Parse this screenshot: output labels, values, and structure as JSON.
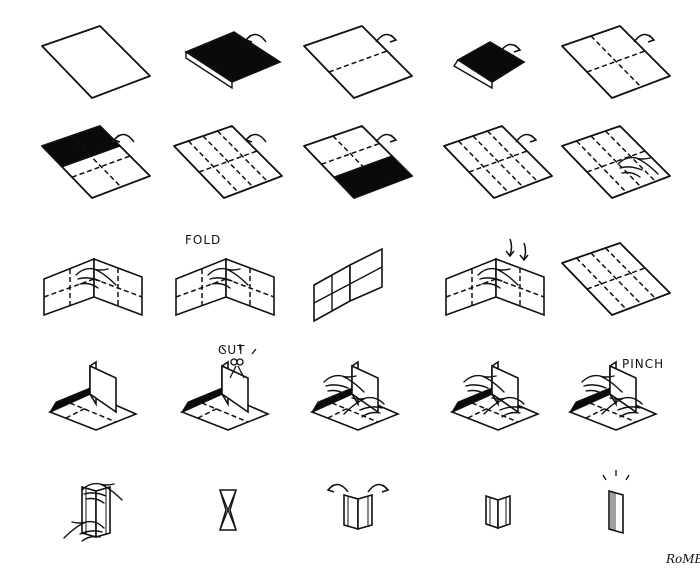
{
  "labels": {
    "fold": "FOLD",
    "cut": "CUT",
    "pinch": "PINCH"
  },
  "signature": "RoMB",
  "colors": {
    "ink": "#111111",
    "paper": "#ffffff",
    "fill": "#0a0a0a"
  },
  "steps": [
    {
      "type": "blank"
    },
    {
      "type": "hot-dog-folded",
      "arrow": "ccw"
    },
    {
      "type": "center-vertical-crease",
      "arrow": "cw"
    },
    {
      "type": "hamburger-folded",
      "arrow": "cw"
    },
    {
      "type": "quarter-creases",
      "arrow": "cw"
    },
    {
      "type": "top-flap-folded",
      "arrow": "ccw"
    },
    {
      "type": "eighth-creases",
      "arrow": "ccw"
    },
    {
      "type": "bottom-flap-folded",
      "arrow": "cw"
    },
    {
      "type": "eighth-creases",
      "arrow": "cw"
    },
    {
      "type": "eighth-creases-hand"
    },
    {
      "type": "fold-with-hands"
    },
    {
      "type": "fold-with-hands",
      "label": "fold"
    },
    {
      "type": "folded-tent"
    },
    {
      "type": "fold-with-hands",
      "arrow": "down"
    },
    {
      "type": "eighth-creases"
    },
    {
      "type": "tent-arrows"
    },
    {
      "type": "tent-cut",
      "label": "cut"
    },
    {
      "type": "tent-hands"
    },
    {
      "type": "tent-hands"
    },
    {
      "type": "tent-pinch",
      "label": "pinch"
    },
    {
      "type": "booklet-push"
    },
    {
      "type": "booklet-star"
    },
    {
      "type": "booklet-spread",
      "arrow": "both"
    },
    {
      "type": "booklet-small"
    },
    {
      "type": "booklet-closed",
      "mark": "sparkle"
    }
  ]
}
